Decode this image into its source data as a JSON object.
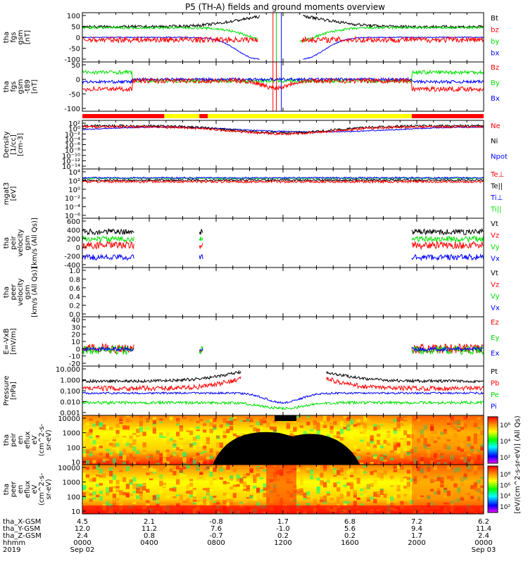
{
  "title": "P5 (TH-A) fields and ground moments overview",
  "colors": {
    "black": "#000000",
    "red": "#ff0000",
    "green": "#00e000",
    "blue": "#0000ff",
    "yellow": "#ffff00"
  },
  "chart_data": [
    {
      "type": "line",
      "ylabel": [
        "tha",
        "fgs",
        "gsm",
        "[nT]"
      ],
      "yticks": [
        "100",
        "50",
        "0",
        "-50",
        "-100"
      ],
      "ylim": [
        -100,
        100
      ],
      "legend": [
        {
          "label": "Bt",
          "color": "black"
        },
        {
          "label": "bz",
          "color": "red"
        },
        {
          "label": "by",
          "color": "green"
        },
        {
          "label": "bx",
          "color": "blue"
        }
      ]
    },
    {
      "type": "line",
      "ylabel": [
        "tha",
        "fgs",
        "gsm",
        "-t89",
        "[nT]"
      ],
      "yticks": [
        "50",
        "0",
        "-50",
        "-100"
      ],
      "ylim": [
        -125,
        75
      ],
      "legend": [
        {
          "label": "Bz",
          "color": "red"
        },
        {
          "label": "By",
          "color": "green"
        },
        {
          "label": "Bx",
          "color": "blue"
        }
      ]
    },
    {
      "type": "line",
      "ylabel": [
        "Density",
        "[1/cc]",
        "[cm-3]"
      ],
      "yticks": [
        "10^2",
        "10^0",
        "10^-2",
        "10^-4",
        "10^-6",
        "10^-8",
        "10^-10",
        "10^-12",
        "10^-14"
      ],
      "log": true,
      "legend": [
        {
          "label": "Ne",
          "color": "red"
        },
        {
          "label": "Ni",
          "color": "black"
        },
        {
          "label": "Npot",
          "color": "blue"
        }
      ]
    },
    {
      "type": "line",
      "ylabel": [
        "mgat3",
        "[eV]"
      ],
      "yticks": [
        "10^4",
        "10^2",
        "10^0",
        "10^-2",
        "10^-4",
        "10^-6"
      ],
      "log": true,
      "legend": [
        {
          "label": "Te⊥",
          "color": "red"
        },
        {
          "label": "Te||",
          "color": "black"
        },
        {
          "label": "Ti⊥",
          "color": "blue"
        },
        {
          "label": "Ti||",
          "color": "green"
        }
      ]
    },
    {
      "type": "line",
      "ylabel": [
        "tha",
        "peir",
        "velocity",
        "gsm",
        "[km/s (All Qs)]"
      ],
      "yticks": [
        "600",
        "400",
        "200",
        "0",
        "-200",
        "-400"
      ],
      "ylim": [
        -400,
        600
      ],
      "legend": [
        {
          "label": "Vt",
          "color": "black"
        },
        {
          "label": "Vz",
          "color": "red"
        },
        {
          "label": "Vy",
          "color": "green"
        },
        {
          "label": "Vx",
          "color": "blue"
        }
      ]
    },
    {
      "type": "line",
      "ylabel": [
        "tha",
        "peer",
        "velocity",
        "gsm",
        "[km/s (All Qs)]"
      ],
      "yticks": [
        "1.0",
        "0.8",
        "0.6",
        "0.4",
        "0.2",
        "0.0"
      ],
      "ylim": [
        0,
        1
      ],
      "legend": [
        {
          "label": "Vt",
          "color": "black"
        },
        {
          "label": "Vz",
          "color": "red"
        },
        {
          "label": "Vy",
          "color": "green"
        },
        {
          "label": "Vx",
          "color": "blue"
        }
      ]
    },
    {
      "type": "line",
      "ylabel": [
        "E=-VxB",
        "[mV/m]"
      ],
      "yticks": [
        "40",
        "30",
        "20",
        "10",
        "0",
        "-10",
        "-20"
      ],
      "ylim": [
        -20,
        40
      ],
      "legend": [
        {
          "label": "Ez",
          "color": "red"
        },
        {
          "label": "Ey",
          "color": "green"
        },
        {
          "label": "Ex",
          "color": "blue"
        }
      ]
    },
    {
      "type": "line",
      "ylabel": [
        "Pressure",
        "[nPa]"
      ],
      "yticks": [
        "10.000",
        "1.000",
        "0.100",
        "0.010",
        "0.001"
      ],
      "log": true,
      "legend": [
        {
          "label": "Pt",
          "color": "black"
        },
        {
          "label": "Pb",
          "color": "red"
        },
        {
          "label": "Pe",
          "color": "green"
        },
        {
          "label": "Pi",
          "color": "blue"
        }
      ]
    },
    {
      "type": "heatmap",
      "ylabel": [
        "tha",
        "peir",
        "en",
        "eflux",
        "eV",
        "(cm^2-s-",
        "sr-eV)"
      ],
      "yticks": [
        "10000",
        "1000",
        "100",
        "10"
      ]
    },
    {
      "type": "heatmap",
      "ylabel": [
        "tha",
        "peer",
        "en",
        "eflux",
        "eV",
        "(cm^2-s-",
        "sr-eV)"
      ],
      "yticks": [
        "10000",
        "1000",
        "100",
        "10"
      ]
    }
  ],
  "colorbar": {
    "label": "[eV/(cm^2-s-sr-eV)] (All Qs)",
    "top_ticks": [
      "10^6",
      "10^4",
      "10^2"
    ],
    "bottom_ticks": [
      "10^8",
      "10^6",
      "10^4",
      "10^2"
    ]
  },
  "orbit_bar": [
    {
      "from": 0,
      "to": 4.9,
      "color": "red"
    },
    {
      "from": 4.9,
      "to": 7.0,
      "color": "yellow"
    },
    {
      "from": 7.0,
      "to": 7.5,
      "color": "red"
    },
    {
      "from": 7.5,
      "to": 19.7,
      "color": "yellow"
    },
    {
      "from": 19.7,
      "to": 24,
      "color": "red"
    }
  ],
  "xaxis": {
    "row_labels": [
      "tha_X-GSM",
      "tha_Y-GSM",
      "tha_Z-GSM",
      "hhmm",
      "2019"
    ],
    "columns": [
      {
        "hour": 0,
        "values": [
          "4.5",
          "12.0",
          "2.4",
          "0000",
          "Sep 02"
        ]
      },
      {
        "hour": 4,
        "values": [
          "2.1",
          "11.2",
          "0.8",
          "0400",
          ""
        ]
      },
      {
        "hour": 8,
        "values": [
          "-0.8",
          "7.6",
          "-0.7",
          "0800",
          ""
        ]
      },
      {
        "hour": 12,
        "values": [
          "1.7",
          "-1.0",
          "0.2",
          "1200",
          ""
        ]
      },
      {
        "hour": 16,
        "values": [
          "6.8",
          "5.6",
          "0.2",
          "1600",
          ""
        ]
      },
      {
        "hour": 20,
        "values": [
          "7.2",
          "9.4",
          "1.7",
          "2000",
          ""
        ]
      },
      {
        "hour": 24,
        "values": [
          "6.2",
          "11.4",
          "2.4",
          "0000",
          "Sep 03"
        ]
      }
    ]
  }
}
